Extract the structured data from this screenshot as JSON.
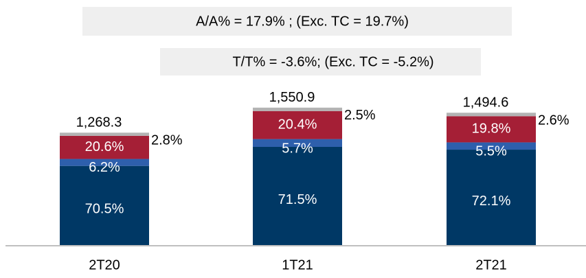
{
  "chart_data": {
    "type": "stacked-bar",
    "annotations": [
      "A/A% = 17.9% ; (Exc. TC  = 19.7%)",
      "T/T% = -3.6%; (Exc. TC = -5.2%)"
    ],
    "categories": [
      "2T20",
      "1T21",
      "2T21"
    ],
    "totals": {
      "values": [
        1268.3,
        1550.9,
        1494.6
      ],
      "value_labels": [
        "1,268.3",
        "1,550.9",
        "1,494.6"
      ]
    },
    "series": [
      {
        "color": "#003865",
        "values": [
          70.5,
          71.5,
          72.1
        ],
        "value_labels": [
          "70.5%",
          "71.5%",
          "72.1%"
        ]
      },
      {
        "color": "#2e5fac",
        "values": [
          6.2,
          5.7,
          5.5
        ],
        "value_labels": [
          "6.2%",
          "5.7%",
          "5.5%"
        ]
      },
      {
        "color": "#a51f36",
        "values": [
          20.6,
          20.4,
          19.8
        ],
        "value_labels": [
          "20.6%",
          "20.4%",
          "19.8%"
        ]
      },
      {
        "color": "#b3b3b3",
        "values": [
          2.8,
          2.5,
          2.6
        ],
        "value_labels": [
          "2.8%",
          "2.5%",
          "2.6%"
        ]
      }
    ]
  }
}
